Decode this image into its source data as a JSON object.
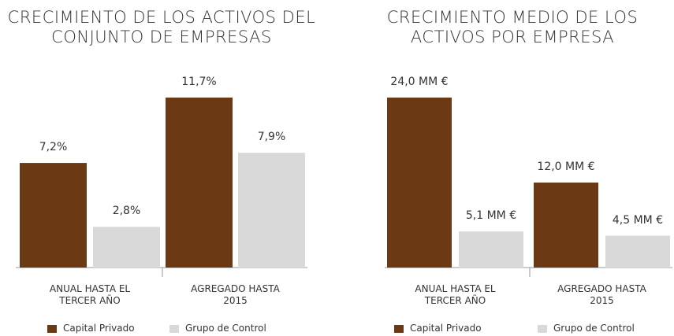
{
  "chart_data": [
    {
      "type": "bar",
      "title": "CRECIMIENTO DE LOS ACTIVOS DEL CONJUNTO DE EMPRESAS",
      "categories": [
        "ANUAL HASTA EL TERCER AÑO",
        "AGREGADO HASTA 2015"
      ],
      "series": [
        {
          "name": "Capital Privado",
          "color": "#6b3a14",
          "values": [
            7.2,
            11.7
          ],
          "value_labels": [
            "7,2%",
            "11,7%"
          ]
        },
        {
          "name": "Grupo de Control",
          "color": "#d9d9d9",
          "values": [
            2.8,
            7.9
          ],
          "value_labels": [
            "2,8%",
            "7,9%"
          ]
        }
      ]
    },
    {
      "type": "bar",
      "title": "CRECIMIENTO MEDIO DE LOS ACTIVOS POR EMPRESA",
      "categories": [
        "ANUAL HASTA EL TERCER AÑO",
        "AGREGADO HASTA 2015"
      ],
      "series": [
        {
          "name": "Capital Privado",
          "color": "#6b3a14",
          "values": [
            24.0,
            12.0
          ],
          "value_labels": [
            "24,0 MM €",
            "12,0 MM €"
          ]
        },
        {
          "name": "Grupo de Control",
          "color": "#d9d9d9",
          "values": [
            5.1,
            4.5
          ],
          "value_labels": [
            "5,1 MM €",
            "4,5 MM €"
          ]
        }
      ]
    }
  ]
}
